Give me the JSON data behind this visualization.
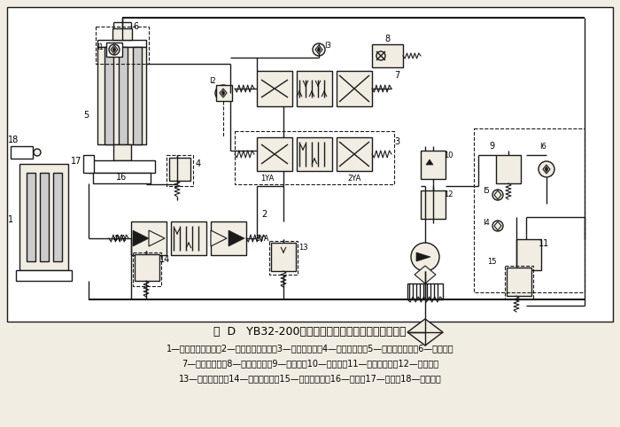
{
  "title": "图  D   YB32-200型四柱万能液压机的液压系统原理图",
  "cap2": "1—下缸（顶出缸）；2—下缸电液换向阀；3—主缸先导阀；4—主缸安全阀；5—上缸（主缸）；6—充液箱；",
  "cap3": "7—主缸换向阀；8—压力继电器；9—释压阀；10—顺序阀；11—泵站溢流阀；12—减压阀；",
  "cap4": "13—下缸溢流阀；14—下缸安全阀；15—远程调压阀；16—滑块；17—挡块；18—行程开关",
  "bg": "#f2ede3",
  "lc": "#1a1a1a"
}
